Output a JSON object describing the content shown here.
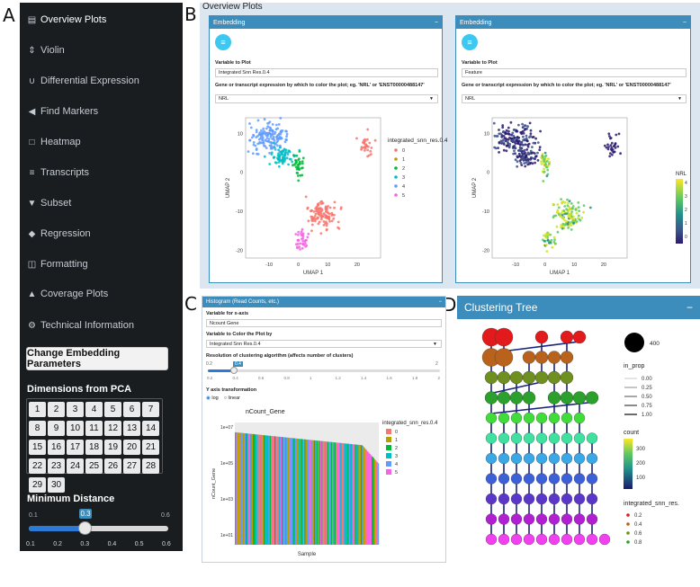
{
  "panel_letters": {
    "a": "A",
    "b": "B",
    "c": "C",
    "d": "D"
  },
  "sidebar": {
    "items": [
      {
        "label": "Overview Plots",
        "icon": "chart-bar-icon",
        "glyph": "▤"
      },
      {
        "label": "Violin",
        "icon": "sort-icon",
        "glyph": "⇕"
      },
      {
        "label": "Differential Expression",
        "icon": "magnet-icon",
        "glyph": "∪"
      },
      {
        "label": "Find Markers",
        "icon": "bullhorn-icon",
        "glyph": "◀"
      },
      {
        "label": "Heatmap",
        "icon": "square-icon",
        "glyph": "□"
      },
      {
        "label": "Transcripts",
        "icon": "sliders-icon",
        "glyph": "≡"
      },
      {
        "label": "Subset",
        "icon": "filter-icon",
        "glyph": "▼"
      },
      {
        "label": "Regression",
        "icon": "eraser-icon",
        "glyph": "◆"
      },
      {
        "label": "Formatting",
        "icon": "columns-icon",
        "glyph": "◫"
      },
      {
        "label": "Coverage Plots",
        "icon": "mountain-icon",
        "glyph": "▲"
      },
      {
        "label": "Technical Information",
        "icon": "cogs-icon",
        "glyph": "⚙"
      }
    ],
    "embed_button": "Change Embedding Parameters",
    "pca_heading": "Dimensions from PCA",
    "pca_values": [
      "1",
      "2",
      "3",
      "4",
      "5",
      "6",
      "7",
      "8",
      "9",
      "10",
      "11",
      "12",
      "13",
      "14",
      "15",
      "16",
      "17",
      "18",
      "19",
      "20",
      "21",
      "22",
      "23",
      "24",
      "25",
      "26",
      "27",
      "28",
      "29",
      "30"
    ],
    "min_dist_heading": "Minimum Distance",
    "slider_min": "0.1",
    "slider_max": "0.6",
    "slider_value": "0.3",
    "slider_fraction": 0.4,
    "slider_ticks": [
      "0.1",
      "0.2",
      "0.3",
      "0.4",
      "0.5",
      "0.6"
    ]
  },
  "overview": {
    "title": "Overview Plots",
    "left_box": {
      "header": "Embedding",
      "var_label": "Variable to Plot",
      "var_value": "Integrated Snn Res.0.4",
      "gene_label": "Gene or transcript expression by which to color the plot; eg. 'NRL' or 'ENST00000488147'",
      "gene_value": "NRL",
      "legend_title": "integrated_snn_res.0.4",
      "legend_items": [
        "0",
        "1",
        "2",
        "3",
        "4",
        "5"
      ],
      "xlabel": "UMAP 1",
      "ylabel": "UMAP 2",
      "xticks": [
        "-10",
        "0",
        "10",
        "20"
      ],
      "yticks": [
        "10",
        "0",
        "-10",
        "-20"
      ]
    },
    "right_box": {
      "header": "Embedding",
      "var_label": "Variable to Plot",
      "var_value": "Feature",
      "gene_label": "Gene or transcript expression by which to color the plot; eg. 'NRL' or 'ENST00000488147'",
      "gene_value": "NRL",
      "legend_title": "NRL",
      "legend_ticks": [
        "4",
        "3",
        "2",
        "1",
        "0"
      ],
      "xlabel": "UMAP 1",
      "ylabel": "UMAP 2",
      "xticks": [
        "-10",
        "0",
        "10",
        "20"
      ],
      "yticks": [
        "10",
        "0",
        "-10",
        "-20"
      ]
    },
    "cluster_colors": [
      "#f8766d",
      "#b79f00",
      "#00ba38",
      "#00bfc4",
      "#619cff",
      "#f564e3"
    ]
  },
  "histogram": {
    "header": "Histogram (Read Counts, etc.)",
    "xaxis_label": "Variable for x-axis",
    "xaxis_value": "Ncount Gene",
    "color_label": "Variable to Color the Plot by",
    "color_value": "Integrated Snn Res.0.4",
    "res_label": "Resolution of clustering algorithm (affects number of clusters)",
    "res_min": "0.2",
    "res_value": "0.4",
    "res_max": "2",
    "res_ticks": [
      "0.2",
      "0.4",
      "0.6",
      "0.8",
      "1",
      "1.2",
      "1.4",
      "1.6",
      "1.8",
      "2"
    ],
    "ytrans_label": "Y axis transformation",
    "ytrans_options": [
      "log",
      "linear"
    ],
    "plot_title": "nCount_Gene",
    "ylabel": "nCount_Gene",
    "xlabel": "Sample",
    "yticks": [
      "1e+07",
      "1e+05",
      "1e+03",
      "1e+01"
    ],
    "legend_title": "integrated_snn_res.0.4",
    "legend_items": [
      "0",
      "1",
      "2",
      "3",
      "4",
      "5"
    ]
  },
  "clustree": {
    "header": "Clustering Tree",
    "size_legend": "400",
    "inprop_title": "in_prop",
    "inprop_items": [
      "0.00",
      "0.25",
      "0.50",
      "0.75",
      "1.00"
    ],
    "count_title": "count",
    "count_ticks": [
      "300",
      "200",
      "100"
    ],
    "res_title": "integrated_snn_res.",
    "res_items": [
      "0.2",
      "0.4",
      "0.6",
      "0.8"
    ]
  }
}
